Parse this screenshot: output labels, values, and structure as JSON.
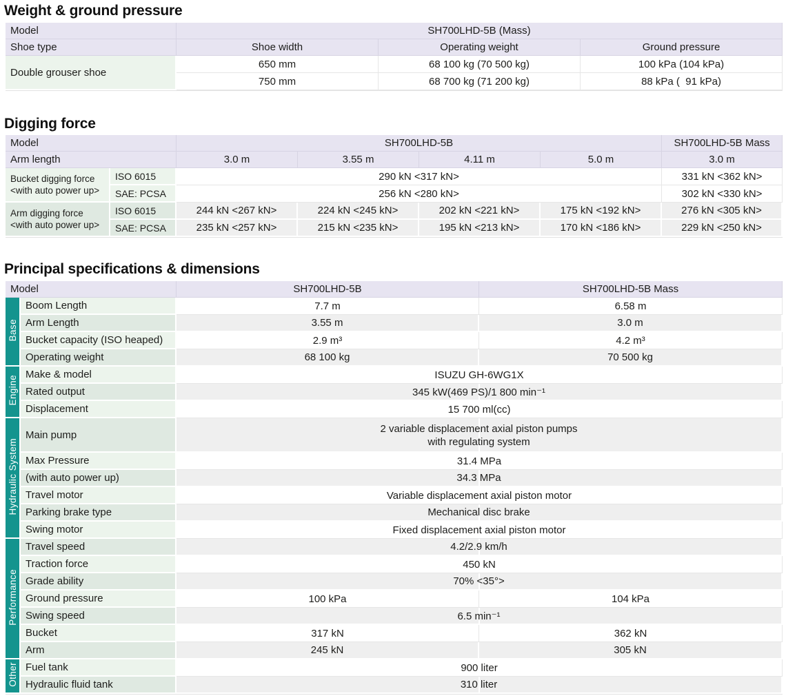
{
  "colors": {
    "header_lavender": "#e7e4f1",
    "label_green_light": "#ecf4ec",
    "label_green_dark": "#dfe9e1",
    "row_gray": "#efefef",
    "group_teal": "#14948e",
    "text": "#1d1d1b"
  },
  "tables": {
    "weight": {
      "title": "Weight & ground pressure",
      "model_label": "Model",
      "model_value": "SH700LHD-5B (Mass)",
      "shoe_type_label": "Shoe type",
      "columns": [
        "Shoe width",
        "Operating weight",
        "Ground pressure"
      ],
      "row_label": "Double grouser shoe",
      "rows": [
        [
          "650 mm",
          "68 100 kg (70 500 kg)",
          "100 kPa (104 kPa)"
        ],
        [
          "750 mm",
          "68 700 kg (71 200 kg)",
          "88 kPa ( 91 kPa)"
        ]
      ]
    },
    "digging": {
      "title": "Digging force",
      "model_label": "Model",
      "model_main": "SH700LHD-5B",
      "model_mass": "SH700LHD-5B Mass",
      "arm_length_label": "Arm length",
      "arm_lengths": [
        "3.0 m",
        "3.55 m",
        "4.11 m",
        "5.0 m",
        "3.0 m"
      ],
      "standards": [
        "ISO 6015",
        "SAE: PCSA"
      ],
      "bucket": {
        "label": "Bucket digging force",
        "sub": "<with auto power up>",
        "iso_main": "290 kN <317 kN>",
        "iso_mass": "331 kN <362 kN>",
        "sae_main": "256 kN <280 kN>",
        "sae_mass": "302 kN <330 kN>"
      },
      "arm": {
        "label": "Arm digging force",
        "sub": "<with auto power up>",
        "iso": [
          "244 kN <267 kN>",
          "224 kN <245 kN>",
          "202 kN <221 kN>",
          "175 kN <192 kN>",
          "276 kN <305 kN>"
        ],
        "sae": [
          "235 kN <257 kN>",
          "215 kN <235 kN>",
          "195 kN <213 kN>",
          "170 kN <186 kN>",
          "229 kN <250 kN>"
        ]
      }
    },
    "specs": {
      "title": "Principal specifications & dimensions",
      "model_label": "Model",
      "model_a": "SH700LHD-5B",
      "model_b": "SH700LHD-5B Mass",
      "groups": [
        {
          "name": "Base",
          "rows": [
            {
              "label": "Boom Length",
              "a": "7.7 m",
              "b": "6.58 m"
            },
            {
              "label": "Arm Length",
              "a": "3.55 m",
              "b": "3.0 m"
            },
            {
              "label": "Bucket capacity (ISO heaped)",
              "a": "2.9 m³",
              "b": "4.2 m³"
            },
            {
              "label": "Operating weight",
              "a": "68 100 kg",
              "b": "70 500 kg"
            }
          ]
        },
        {
          "name": "Engine",
          "rows": [
            {
              "label": "Make & model",
              "span": "ISUZU GH-6WG1X"
            },
            {
              "label": "Rated output",
              "span": "345 kW(469 PS)/1 800 min⁻¹"
            },
            {
              "label": "Displacement",
              "span": "15 700 ml(cc)"
            }
          ]
        },
        {
          "name": "Hydraulic System",
          "rows": [
            {
              "label": "Main pump",
              "span": "2 variable displacement axial piston pumps\nwith regulating system",
              "tall": true
            },
            {
              "label": "Max Pressure",
              "span": "31.4 MPa"
            },
            {
              "label": "(with auto power up)",
              "span": "34.3 MPa"
            },
            {
              "label": "Travel motor",
              "span": "Variable displacement axial piston motor"
            },
            {
              "label": "Parking brake type",
              "span": "Mechanical disc brake"
            },
            {
              "label": "Swing motor",
              "span": "Fixed displacement axial piston motor"
            }
          ]
        },
        {
          "name": "Performance",
          "rows": [
            {
              "label": "Travel speed",
              "span": "4.2/2.9 km/h"
            },
            {
              "label": "Traction force",
              "span": "450 kN"
            },
            {
              "label": "Grade ability",
              "span": "70% <35°>"
            },
            {
              "label": "Ground pressure",
              "a": "100 kPa",
              "b": "104 kPa"
            },
            {
              "label": "Swing speed",
              "span": "6.5 min⁻¹"
            },
            {
              "label": "Bucket",
              "a": "317 kN",
              "b": "362 kN"
            },
            {
              "label": "Arm",
              "a": "245 kN",
              "b": "305 kN"
            }
          ]
        },
        {
          "name": "Other",
          "rows": [
            {
              "label": "Fuel tank",
              "span": "900 liter"
            },
            {
              "label": "Hydraulic fluid tank",
              "span": "310 liter"
            }
          ]
        }
      ]
    }
  }
}
